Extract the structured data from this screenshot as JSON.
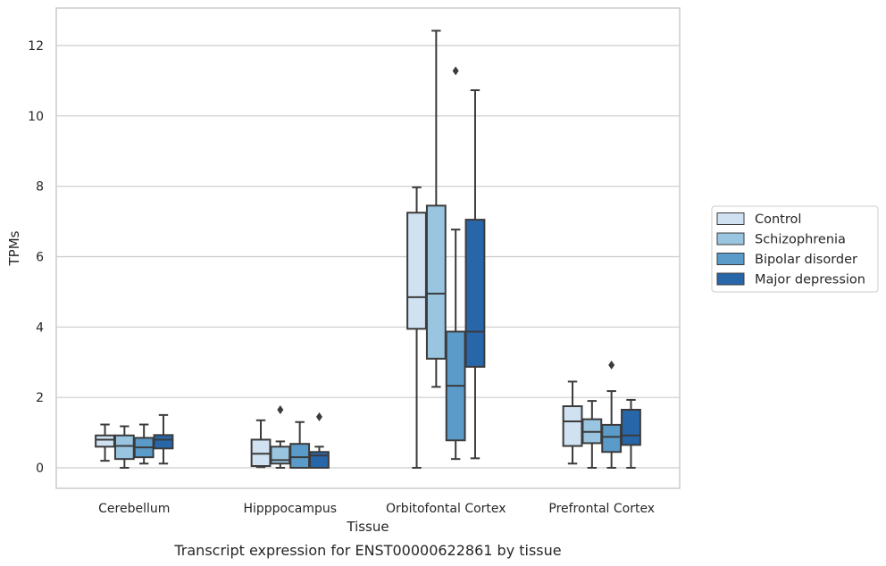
{
  "chart_data": {
    "type": "box",
    "caption": "Transcript expression for ENST00000622861 by tissue",
    "xlabel": "Tissue",
    "ylabel": "TPMs",
    "ylim": [
      -0.6,
      13.05
    ],
    "yticks": [
      0,
      2,
      4,
      6,
      8,
      10,
      12
    ],
    "grid": "horizontal",
    "legend_position": "right",
    "categories": [
      "Cerebellum",
      "Hipppocampus",
      "Orbitofontal Cortex",
      "Prefrontal Cortex"
    ],
    "series": [
      {
        "name": "Control",
        "color": "#d0e1f2",
        "boxes": [
          {
            "whislo": 0.2,
            "q1": 0.6,
            "med": 0.8,
            "q3": 0.92,
            "whishi": 1.23,
            "fliers": []
          },
          {
            "whislo": 0.02,
            "q1": 0.05,
            "med": 0.4,
            "q3": 0.8,
            "whishi": 1.35,
            "fliers": []
          },
          {
            "whislo": 0.0,
            "q1": 3.95,
            "med": 4.85,
            "q3": 7.25,
            "whishi": 7.97,
            "fliers": []
          },
          {
            "whislo": 0.12,
            "q1": 0.62,
            "med": 1.32,
            "q3": 1.75,
            "whishi": 2.45,
            "fliers": []
          }
        ]
      },
      {
        "name": "Schizophrenia",
        "color": "#9ac5e0",
        "boxes": [
          {
            "whislo": 0.0,
            "q1": 0.25,
            "med": 0.62,
            "q3": 0.92,
            "whishi": 1.18,
            "fliers": []
          },
          {
            "whislo": 0.0,
            "q1": 0.12,
            "med": 0.22,
            "q3": 0.6,
            "whishi": 0.75,
            "fliers": [
              1.65
            ]
          },
          {
            "whislo": 2.3,
            "q1": 3.1,
            "med": 4.95,
            "q3": 7.45,
            "whishi": 12.42,
            "fliers": []
          },
          {
            "whislo": 0.0,
            "q1": 0.7,
            "med": 1.02,
            "q3": 1.38,
            "whishi": 1.9,
            "fliers": []
          }
        ]
      },
      {
        "name": "Bipolar disorder",
        "color": "#5a9bc9",
        "boxes": [
          {
            "whislo": 0.12,
            "q1": 0.3,
            "med": 0.58,
            "q3": 0.85,
            "whishi": 1.23,
            "fliers": []
          },
          {
            "whislo": 0.0,
            "q1": 0.0,
            "med": 0.3,
            "q3": 0.68,
            "whishi": 1.3,
            "fliers": []
          },
          {
            "whislo": 0.25,
            "q1": 0.78,
            "med": 2.33,
            "q3": 3.87,
            "whishi": 6.77,
            "fliers": [
              11.28
            ]
          },
          {
            "whislo": 0.0,
            "q1": 0.45,
            "med": 0.88,
            "q3": 1.22,
            "whishi": 2.18,
            "fliers": [
              2.92
            ]
          }
        ]
      },
      {
        "name": "Major depression",
        "color": "#2866aa",
        "boxes": [
          {
            "whislo": 0.12,
            "q1": 0.55,
            "med": 0.8,
            "q3": 0.93,
            "whishi": 1.5,
            "fliers": []
          },
          {
            "whislo": 0.0,
            "q1": 0.0,
            "med": 0.35,
            "q3": 0.45,
            "whishi": 0.6,
            "fliers": [
              1.45
            ]
          },
          {
            "whislo": 0.27,
            "q1": 2.87,
            "med": 3.87,
            "q3": 7.05,
            "whishi": 10.73,
            "fliers": []
          },
          {
            "whislo": 0.0,
            "q1": 0.65,
            "med": 0.92,
            "q3": 1.65,
            "whishi": 1.93,
            "fliers": []
          }
        ]
      }
    ]
  }
}
